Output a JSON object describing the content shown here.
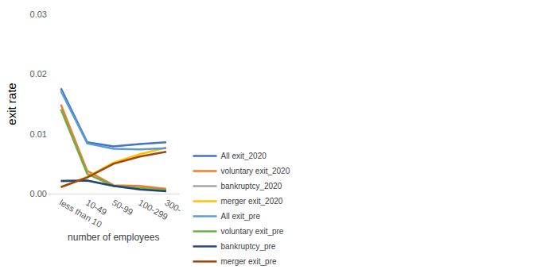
{
  "chart_data": {
    "type": "line",
    "x_label": "number of employees",
    "y_label": "exit rate",
    "categories": [
      "less than 10",
      "10-49",
      "50-99",
      "100-299",
      "300-"
    ],
    "ylim": [
      0,
      0.03
    ],
    "yticks": [
      {
        "value": 0,
        "label": "0.00"
      },
      0.01,
      0.02,
      0.03
    ],
    "grid": false,
    "legend": "bottom",
    "series": [
      {
        "name": "All exit_2020",
        "color": "#4472c4",
        "values": [
          0.0176,
          0.0086,
          0.0079,
          0.0083,
          0.0086
        ]
      },
      {
        "name": "voluntary exit_2020",
        "color": "#ed7d31",
        "values": [
          0.0149,
          0.0038,
          0.0014,
          0.0013,
          0.0008
        ]
      },
      {
        "name": "bankruptcy_2020",
        "color": "#a5a5a5",
        "values": [
          0.0022,
          0.0022,
          0.0013,
          0.0008,
          0.0005
        ]
      },
      {
        "name": "merger exit_2020",
        "color": "#ffc000",
        "values": [
          0.0011,
          0.0028,
          0.0052,
          0.0066,
          0.0077
        ]
      },
      {
        "name": "All exit_pre",
        "color": "#5b9bd5",
        "values": [
          0.0172,
          0.0084,
          0.0075,
          0.0074,
          0.0076
        ]
      },
      {
        "name": "voluntary exit_pre",
        "color": "#70ad47",
        "values": [
          0.0141,
          0.0033,
          0.0013,
          0.001,
          0.0006
        ]
      },
      {
        "name": "bankruptcy_pre",
        "color": "#264478",
        "values": [
          0.0021,
          0.0022,
          0.0013,
          0.0007,
          0.0004
        ]
      },
      {
        "name": "merger exit_pre",
        "color": "#9e480e",
        "values": [
          0.0011,
          0.0027,
          0.005,
          0.0062,
          0.007
        ]
      }
    ]
  }
}
